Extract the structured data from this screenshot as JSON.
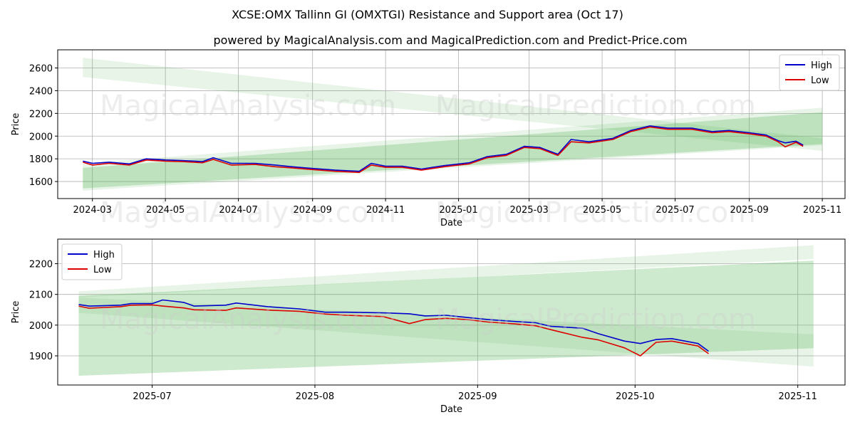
{
  "title": "XCSE:OMX Tallinn GI (OMXTGI) Resistance and Support area (Oct 17)",
  "subtitle": "powered by MagicalAnalysis.com and MagicalPrediction.com and Predict-Price.com",
  "watermarks": [
    "MagicalAnalysis.com",
    "MagicalPrediction.com"
  ],
  "colors": {
    "high": "#0000cc",
    "low": "#dd0000",
    "band": "#5cb85c"
  },
  "chart_data": [
    {
      "type": "line",
      "xlabel": "Date",
      "ylabel": "Price",
      "xlim": [
        "2024-02-01",
        "2025-11-20"
      ],
      "ylim": [
        1450,
        2760
      ],
      "grid": true,
      "legend_position": "top-right",
      "xticks": [
        {
          "date": "2024-03-01",
          "label": "2024-03"
        },
        {
          "date": "2024-05-01",
          "label": "2024-05"
        },
        {
          "date": "2024-07-01",
          "label": "2024-07"
        },
        {
          "date": "2024-09-01",
          "label": "2024-09"
        },
        {
          "date": "2024-11-01",
          "label": "2024-11"
        },
        {
          "date": "2025-01-01",
          "label": "2025-01"
        },
        {
          "date": "2025-03-01",
          "label": "2025-03"
        },
        {
          "date": "2025-05-01",
          "label": "2025-05"
        },
        {
          "date": "2025-07-01",
          "label": "2025-07"
        },
        {
          "date": "2025-09-01",
          "label": "2025-09"
        },
        {
          "date": "2025-11-01",
          "label": "2025-11"
        }
      ],
      "yticks": [
        1600,
        1800,
        2000,
        2200,
        2400,
        2600
      ],
      "bands": [
        {
          "x": [
            "2024-02-22",
            "2025-11-01"
          ],
          "upper": [
            2690,
            1980
          ],
          "lower": [
            2520,
            1870
          ],
          "opacity": 0.15
        },
        {
          "x": [
            "2024-02-22",
            "2025-11-01"
          ],
          "upper": [
            1760,
            2250
          ],
          "lower": [
            1520,
            1920
          ],
          "opacity": 0.15
        },
        {
          "x": [
            "2024-02-22",
            "2025-11-01"
          ],
          "upper": [
            1720,
            2210
          ],
          "lower": [
            1540,
            1930
          ],
          "opacity": 0.3
        }
      ],
      "series": [
        {
          "name": "High",
          "x": [
            "2024-02-22",
            "2024-03-01",
            "2024-03-15",
            "2024-04-01",
            "2024-04-15",
            "2024-05-01",
            "2024-05-15",
            "2024-06-01",
            "2024-06-10",
            "2024-06-25",
            "2024-07-15",
            "2024-08-01",
            "2024-08-15",
            "2024-09-01",
            "2024-09-20",
            "2024-10-10",
            "2024-10-20",
            "2024-11-01",
            "2024-11-15",
            "2024-12-01",
            "2024-12-20",
            "2025-01-10",
            "2025-01-25",
            "2025-02-10",
            "2025-02-25",
            "2025-03-10",
            "2025-03-20",
            "2025-03-25",
            "2025-04-05",
            "2025-04-20",
            "2025-05-10",
            "2025-05-25",
            "2025-06-10",
            "2025-06-25",
            "2025-07-15",
            "2025-08-01",
            "2025-08-15",
            "2025-09-01",
            "2025-09-15",
            "2025-09-25",
            "2025-10-01",
            "2025-10-10",
            "2025-10-16"
          ],
          "values": [
            1780,
            1760,
            1770,
            1755,
            1800,
            1790,
            1785,
            1775,
            1810,
            1760,
            1760,
            1745,
            1730,
            1715,
            1700,
            1690,
            1760,
            1735,
            1735,
            1710,
            1740,
            1765,
            1820,
            1840,
            1910,
            1900,
            1860,
            1840,
            1970,
            1950,
            1980,
            2050,
            2090,
            2070,
            2070,
            2040,
            2050,
            2030,
            2010,
            1960,
            1940,
            1955,
            1920
          ]
        },
        {
          "name": "Low",
          "x": [
            "2024-02-22",
            "2024-03-01",
            "2024-03-15",
            "2024-04-01",
            "2024-04-15",
            "2024-05-01",
            "2024-05-15",
            "2024-06-01",
            "2024-06-10",
            "2024-06-25",
            "2024-07-15",
            "2024-08-01",
            "2024-08-15",
            "2024-09-01",
            "2024-09-20",
            "2024-10-10",
            "2024-10-20",
            "2024-11-01",
            "2024-11-15",
            "2024-12-01",
            "2024-12-20",
            "2025-01-10",
            "2025-01-25",
            "2025-02-10",
            "2025-02-25",
            "2025-03-10",
            "2025-03-20",
            "2025-03-25",
            "2025-04-05",
            "2025-04-20",
            "2025-05-10",
            "2025-05-25",
            "2025-06-10",
            "2025-06-25",
            "2025-07-15",
            "2025-08-01",
            "2025-08-15",
            "2025-09-01",
            "2025-09-15",
            "2025-09-25",
            "2025-10-01",
            "2025-10-10",
            "2025-10-16"
          ],
          "values": [
            1770,
            1745,
            1760,
            1745,
            1790,
            1780,
            1775,
            1765,
            1795,
            1745,
            1750,
            1730,
            1720,
            1705,
            1690,
            1680,
            1745,
            1725,
            1725,
            1700,
            1730,
            1755,
            1810,
            1830,
            1900,
            1890,
            1850,
            1830,
            1950,
            1940,
            1970,
            2040,
            2080,
            2060,
            2060,
            2030,
            2040,
            2020,
            2000,
            1950,
            1905,
            1945,
            1910
          ]
        }
      ]
    },
    {
      "type": "line",
      "xlabel": "Date",
      "ylabel": "Price",
      "xlim": [
        "2025-06-13",
        "2025-11-10"
      ],
      "ylim": [
        1805,
        2280
      ],
      "grid": true,
      "legend_position": "top-left",
      "xticks": [
        {
          "date": "2025-07-01",
          "label": "2025-07"
        },
        {
          "date": "2025-08-01",
          "label": "2025-08"
        },
        {
          "date": "2025-09-01",
          "label": "2025-09"
        },
        {
          "date": "2025-10-01",
          "label": "2025-10"
        },
        {
          "date": "2025-11-01",
          "label": "2025-11"
        }
      ],
      "yticks": [
        1900,
        2000,
        2100,
        2200
      ],
      "bands": [
        {
          "x": [
            "2025-06-17",
            "2025-11-04"
          ],
          "upper": [
            2110,
            2260
          ],
          "lower": [
            2090,
            2215
          ],
          "opacity": 0.15
        },
        {
          "x": [
            "2025-06-17",
            "2025-11-04"
          ],
          "upper": [
            2095,
            2210
          ],
          "lower": [
            1835,
            1925
          ],
          "opacity": 0.3
        },
        {
          "x": [
            "2025-06-17",
            "2025-11-04"
          ],
          "upper": [
            2090,
            1970
          ],
          "lower": [
            2040,
            1865
          ],
          "opacity": 0.15
        }
      ],
      "series": [
        {
          "name": "High",
          "x": [
            "2025-06-17",
            "2025-06-19",
            "2025-06-25",
            "2025-06-27",
            "2025-07-01",
            "2025-07-03",
            "2025-07-07",
            "2025-07-09",
            "2025-07-15",
            "2025-07-17",
            "2025-07-23",
            "2025-07-29",
            "2025-08-03",
            "2025-08-07",
            "2025-08-14",
            "2025-08-19",
            "2025-08-22",
            "2025-08-26",
            "2025-08-30",
            "2025-09-03",
            "2025-09-08",
            "2025-09-12",
            "2025-09-15",
            "2025-09-21",
            "2025-09-24",
            "2025-09-29",
            "2025-10-02",
            "2025-10-05",
            "2025-10-08",
            "2025-10-13",
            "2025-10-15"
          ],
          "values": [
            2067,
            2062,
            2065,
            2070,
            2070,
            2082,
            2074,
            2062,
            2065,
            2072,
            2060,
            2053,
            2042,
            2042,
            2040,
            2037,
            2030,
            2032,
            2025,
            2018,
            2012,
            2008,
            1996,
            1990,
            1972,
            1948,
            1940,
            1953,
            1956,
            1940,
            1915
          ]
        },
        {
          "name": "Low",
          "x": [
            "2025-06-17",
            "2025-06-19",
            "2025-06-25",
            "2025-06-27",
            "2025-07-01",
            "2025-07-03",
            "2025-07-07",
            "2025-07-09",
            "2025-07-15",
            "2025-07-17",
            "2025-07-23",
            "2025-07-29",
            "2025-08-03",
            "2025-08-07",
            "2025-08-14",
            "2025-08-19",
            "2025-08-22",
            "2025-08-26",
            "2025-08-30",
            "2025-09-03",
            "2025-09-08",
            "2025-09-12",
            "2025-09-15",
            "2025-09-21",
            "2025-09-24",
            "2025-09-29",
            "2025-10-02",
            "2025-10-05",
            "2025-10-08",
            "2025-10-13",
            "2025-10-15"
          ],
          "values": [
            2062,
            2055,
            2060,
            2065,
            2066,
            2062,
            2056,
            2050,
            2048,
            2056,
            2049,
            2045,
            2036,
            2032,
            2028,
            2005,
            2018,
            2022,
            2018,
            2010,
            2004,
            1998,
            1985,
            1960,
            1952,
            1926,
            1900,
            1944,
            1948,
            1932,
            1907
          ]
        }
      ]
    }
  ]
}
